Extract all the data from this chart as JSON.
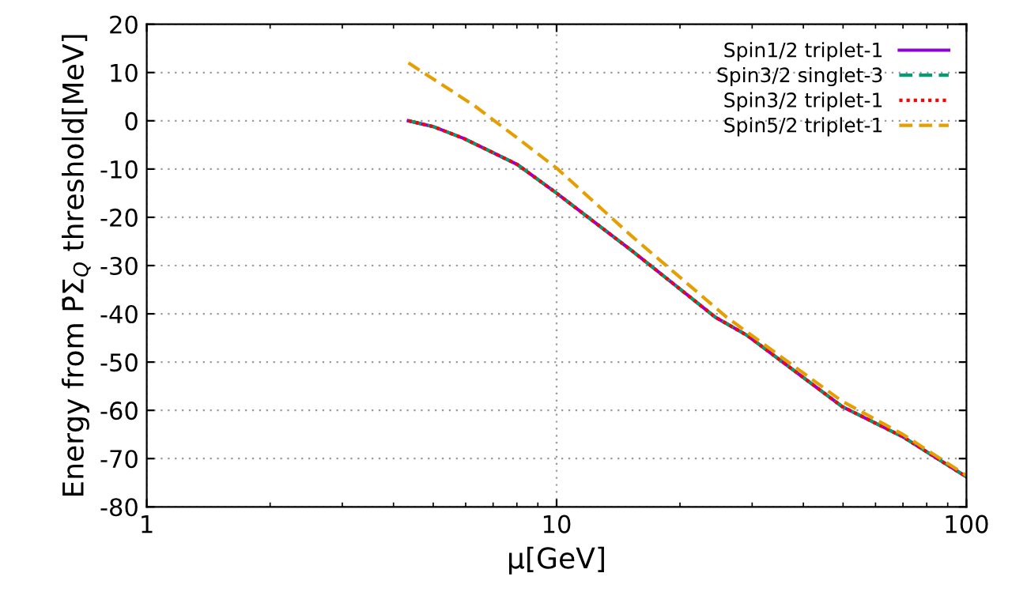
{
  "chart_data": {
    "type": "line",
    "xlabel": "μ[GeV]",
    "ylabel": "Energy from P̄Σ$_{Q}$ threshold[MeV]",
    "log": "x",
    "xlim": [
      1,
      100
    ],
    "xticks": [
      1,
      10,
      100
    ],
    "ylim": [
      -80,
      20
    ],
    "yticks": [
      -80,
      -70,
      -60,
      -50,
      -40,
      -30,
      -20,
      -10,
      0,
      10,
      20
    ],
    "grid": true,
    "legend": "top right",
    "series": [
      {
        "name": "Spin1/2 triplet-1",
        "color": "#9400d3",
        "line_style": "solid",
        "x": [
          4.35,
          5.0,
          5.95,
          8.0,
          10,
          15.3,
          24.4,
          29.2,
          49.7,
          70,
          100
        ],
        "values": [
          0,
          -1.2,
          -3.7,
          -9.0,
          -15.0,
          -27,
          -40.7,
          -44.5,
          -59.2,
          -65.5,
          -73.8
        ]
      },
      {
        "name": "Spin3/2 singlet-3",
        "color": "#009e73",
        "line_style": "dashed",
        "x": [
          4.35,
          5.0,
          5.95,
          8.0,
          10,
          15.3,
          24.4,
          29.2,
          49.7,
          70,
          100
        ],
        "values": [
          0,
          -1.2,
          -3.7,
          -9.0,
          -15.0,
          -27,
          -40.7,
          -44.5,
          -59.2,
          -65.5,
          -73.8
        ]
      },
      {
        "name": "Spin3/2 triplet-1",
        "color": "#ff0000",
        "line_style": "dotted",
        "x": [
          4.35,
          5.0,
          5.95,
          8.0,
          10,
          15.3,
          24.4,
          29.2,
          49.7,
          70,
          100
        ],
        "values": [
          0,
          -1.2,
          -3.7,
          -9.0,
          -15.0,
          -27,
          -40.7,
          -44.5,
          -59.2,
          -65.5,
          -73.8
        ]
      },
      {
        "name": "Spin5/2 triplet-1",
        "color": "#e69f00",
        "line_style": "dashed",
        "x": [
          4.35,
          6.31,
          8.0,
          10,
          15.3,
          26.0,
          49.7,
          70,
          100
        ],
        "values": [
          12.0,
          3.1,
          -3.5,
          -9.8,
          -24.0,
          -40.7,
          -58.1,
          -65,
          -73.5
        ]
      }
    ]
  }
}
